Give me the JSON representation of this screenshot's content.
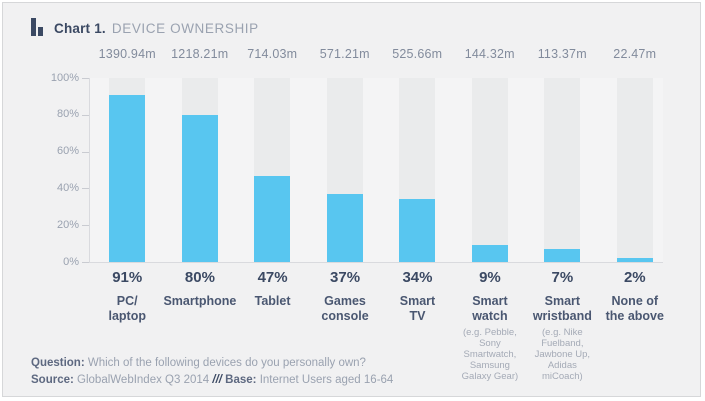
{
  "header": {
    "title_prefix": "Chart 1.",
    "title": "DEVICE OWNERSHIP"
  },
  "chart_data": {
    "type": "bar",
    "title": "Chart 1. DEVICE OWNERSHIP",
    "categories": [
      "PC/\nlaptop",
      "Smartphone",
      "Tablet",
      "Games\nconsole",
      "Smart\nTV",
      "Smart\nwatch",
      "Smart\nwristband",
      "None of\nthe above"
    ],
    "category_notes": [
      "",
      "",
      "",
      "",
      "",
      "(e.g. Pebble,\nSony\nSmartwatch,\nSamsung\nGalaxy Gear)",
      "(e.g. Nike\nFuelband,\nJawbone Up,\nAdidas\nmiCoach)",
      ""
    ],
    "values": [
      91,
      80,
      47,
      37,
      34,
      9,
      7,
      2
    ],
    "value_labels": [
      "91%",
      "80%",
      "47%",
      "37%",
      "34%",
      "9%",
      "7%",
      "2%"
    ],
    "audience_labels": [
      "1390.94m",
      "1218.21m",
      "714.03m",
      "571.21m",
      "525.66m",
      "144.32m",
      "113.37m",
      "22.47m"
    ],
    "ylim": [
      0,
      100
    ],
    "y_ticks": [
      100,
      80,
      60,
      40,
      20,
      0
    ],
    "y_tick_labels": [
      "100%",
      "80%",
      "60%",
      "40%",
      "20%",
      "0%"
    ],
    "grid": "off",
    "legend": "none",
    "bar_color": "#58c6f0",
    "track_color": "#eaebec"
  },
  "footer": {
    "question_label": "Question:",
    "question_text": "Which of the following devices do you personally own?",
    "source_label": "Source:",
    "source_text": "GlobalWebIndex Q3 2014",
    "separator": "///",
    "base_label": "Base:",
    "base_text": "Internet Users  aged 16-64"
  },
  "colors": {
    "bar_blue": "#58c6f0",
    "track_gray": "#eaebec",
    "navy_text": "#3b4963",
    "gray_text": "#9aa2b0",
    "background": "#f1f1f2"
  }
}
